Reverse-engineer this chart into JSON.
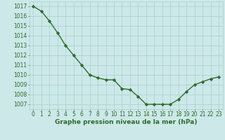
{
  "x": [
    0,
    1,
    2,
    3,
    4,
    5,
    6,
    7,
    8,
    9,
    10,
    11,
    12,
    13,
    14,
    15,
    16,
    17,
    18,
    19,
    20,
    21,
    22,
    23
  ],
  "y": [
    1017.0,
    1016.5,
    1015.5,
    1014.3,
    1013.0,
    1012.0,
    1011.0,
    1010.0,
    1009.7,
    1009.5,
    1009.5,
    1008.6,
    1008.5,
    1007.8,
    1007.0,
    1007.0,
    1007.0,
    1007.0,
    1007.5,
    1008.3,
    1009.0,
    1009.3,
    1009.6,
    1009.8
  ],
  "ylim": [
    1006.5,
    1017.5
  ],
  "yticks": [
    1007,
    1008,
    1009,
    1010,
    1011,
    1012,
    1013,
    1014,
    1015,
    1016,
    1017
  ],
  "xlim": [
    -0.5,
    23.5
  ],
  "xticks": [
    0,
    1,
    2,
    3,
    4,
    5,
    6,
    7,
    8,
    9,
    10,
    11,
    12,
    13,
    14,
    15,
    16,
    17,
    18,
    19,
    20,
    21,
    22,
    23
  ],
  "xlabel": "Graphe pression niveau de la mer (hPa)",
  "line_color": "#2d6b2d",
  "marker": "D",
  "bg_color": "#cce8e8",
  "grid_color": "#aacfcf",
  "tick_color": "#2d6b2d",
  "xlabel_color": "#2d6b2d",
  "marker_size": 2.2,
  "line_width": 1.0,
  "tick_fontsize": 5.5,
  "xlabel_fontsize": 6.5
}
